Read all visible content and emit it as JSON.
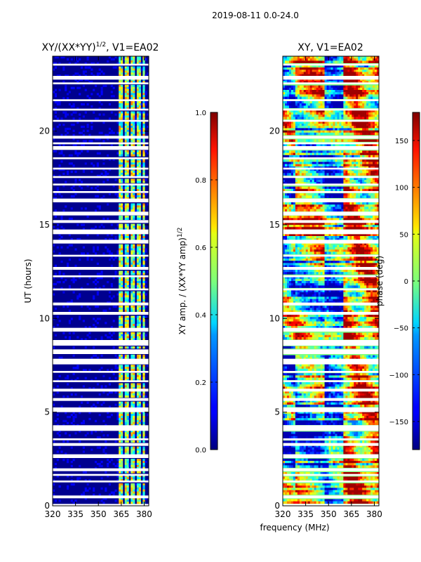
{
  "suptitle": "2019-08-11 0.0-24.0",
  "chart_data": [
    {
      "type": "heatmap",
      "title_main": "XY/(XX*YY)",
      "title_sup": "1/2",
      "title_rest": ", V1=EA02",
      "xlabel": "",
      "ylabel": "UT (hours)",
      "xlim": [
        320,
        383
      ],
      "ylim": [
        0,
        24
      ],
      "xticks": [
        320,
        335,
        350,
        365,
        380
      ],
      "yticks": [
        0,
        5,
        10,
        15,
        20
      ],
      "quantity": "amplitude",
      "colorbar": {
        "label_main": "XY amp. / (XX*YY amp)",
        "label_sup": "1/2",
        "range": [
          0.0,
          1.0
        ],
        "ticks": [
          "0.0",
          "0.2",
          "0.4",
          "0.6",
          "0.8",
          "1.0"
        ]
      }
    },
    {
      "type": "heatmap",
      "title_main": "XY, V1=EA02",
      "xlabel": "frequency (MHz)",
      "ylabel": "",
      "xlim": [
        320,
        383
      ],
      "ylim": [
        0,
        24
      ],
      "xticks": [
        320,
        335,
        350,
        365,
        380
      ],
      "yticks": [
        0,
        5,
        10,
        15,
        20
      ],
      "quantity": "phase",
      "colorbar": {
        "label_main": "phase (deg)",
        "range": [
          -180,
          180
        ],
        "ticks": [
          "−150",
          "−100",
          "−50",
          "0",
          "50",
          "100",
          "150"
        ]
      }
    }
  ],
  "flagged_time_ranges_hours": [
    [
      0.0,
      0.1
    ],
    [
      0.4,
      0.55
    ],
    [
      1.25,
      1.35
    ],
    [
      1.6,
      1.7
    ],
    [
      1.85,
      2.0
    ],
    [
      2.55,
      2.75
    ],
    [
      3.2,
      3.35
    ],
    [
      3.5,
      3.6
    ],
    [
      4.0,
      4.3
    ],
    [
      5.0,
      5.25
    ],
    [
      5.6,
      5.75
    ],
    [
      6.1,
      6.25
    ],
    [
      6.6,
      6.7
    ],
    [
      7.1,
      7.2
    ],
    [
      7.55,
      7.85
    ],
    [
      8.1,
      8.35
    ],
    [
      8.55,
      8.85
    ],
    [
      9.3,
      9.5
    ],
    [
      10.2,
      10.35
    ],
    [
      10.7,
      10.85
    ],
    [
      11.5,
      11.6
    ],
    [
      12.2,
      12.3
    ],
    [
      12.6,
      12.75
    ],
    [
      13.3,
      13.4
    ],
    [
      14.0,
      14.2
    ],
    [
      14.5,
      14.75
    ],
    [
      15.1,
      15.25
    ],
    [
      15.5,
      15.7
    ],
    [
      16.2,
      16.4
    ],
    [
      16.7,
      16.8
    ],
    [
      17.1,
      17.2
    ],
    [
      17.5,
      17.6
    ],
    [
      17.95,
      18.05
    ],
    [
      18.5,
      18.6
    ],
    [
      19.0,
      19.2
    ],
    [
      19.3,
      19.4
    ],
    [
      19.6,
      19.75
    ],
    [
      20.5,
      20.6
    ],
    [
      21.1,
      21.2
    ],
    [
      21.6,
      21.7
    ],
    [
      22.5,
      22.6
    ],
    [
      22.75,
      22.95
    ],
    [
      23.5,
      23.6
    ]
  ]
}
